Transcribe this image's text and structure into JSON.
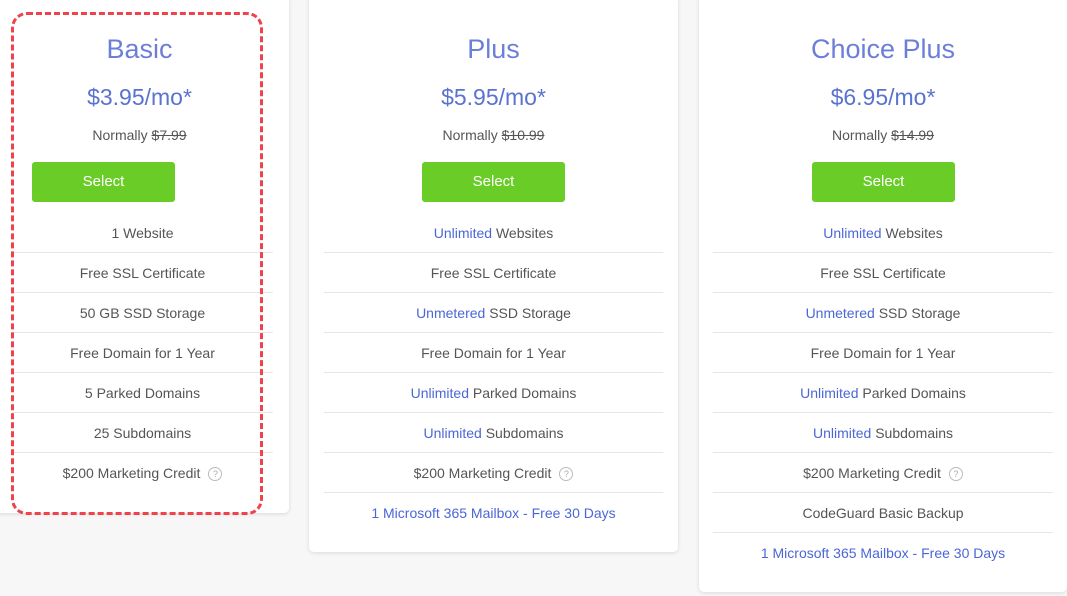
{
  "colors": {
    "accent": "#5a72d0",
    "button": "#6acd27",
    "highlight_border": "#f0424b"
  },
  "plans": [
    {
      "name": "Basic",
      "price": "$3.95/mo*",
      "normally_label": "Normally",
      "normal_price": "$7.99",
      "select_label": "Select",
      "features": [
        {
          "pre": "",
          "hl": "",
          "text": "1 Website"
        },
        {
          "pre": "",
          "hl": "",
          "text": "Free SSL Certificate"
        },
        {
          "pre": "",
          "hl": "",
          "text": "50 GB SSD Storage"
        },
        {
          "pre": "",
          "hl": "",
          "text": "Free Domain for 1 Year"
        },
        {
          "pre": "",
          "hl": "",
          "text": "5 Parked Domains"
        },
        {
          "pre": "",
          "hl": "",
          "text": "25 Subdomains"
        },
        {
          "pre": "",
          "hl": "",
          "text": "$200 Marketing Credit",
          "help": true
        }
      ]
    },
    {
      "name": "Plus",
      "price": "$5.95/mo*",
      "normally_label": "Normally",
      "normal_price": "$10.99",
      "select_label": "Select",
      "features": [
        {
          "hl": "Unlimited",
          "text": " Websites"
        },
        {
          "hl": "",
          "text": "Free SSL Certificate"
        },
        {
          "hl": "Unmetered",
          "text": " SSD Storage"
        },
        {
          "hl": "",
          "text": "Free Domain for 1 Year"
        },
        {
          "hl": "Unlimited",
          "text": " Parked Domains"
        },
        {
          "hl": "Unlimited",
          "text": " Subdomains"
        },
        {
          "hl": "",
          "text": "$200 Marketing Credit",
          "help": true
        },
        {
          "hl": "",
          "text": "1 Microsoft 365 Mailbox - Free 30 Days",
          "link": true
        }
      ]
    },
    {
      "name": "Choice Plus",
      "price": "$6.95/mo*",
      "normally_label": "Normally",
      "normal_price": "$14.99",
      "select_label": "Select",
      "features": [
        {
          "hl": "Unlimited",
          "text": " Websites"
        },
        {
          "hl": "",
          "text": "Free SSL Certificate"
        },
        {
          "hl": "Unmetered",
          "text": " SSD Storage"
        },
        {
          "hl": "",
          "text": "Free Domain for 1 Year"
        },
        {
          "hl": "Unlimited",
          "text": " Parked Domains"
        },
        {
          "hl": "Unlimited",
          "text": " Subdomains"
        },
        {
          "hl": "",
          "text": "$200 Marketing Credit",
          "help": true
        },
        {
          "hl": "",
          "text": "CodeGuard Basic Backup"
        },
        {
          "hl": "",
          "text": "1 Microsoft 365 Mailbox - Free 30 Days",
          "link": true
        }
      ]
    }
  ],
  "help_icon": "question-circle-icon",
  "help_glyph": "?"
}
